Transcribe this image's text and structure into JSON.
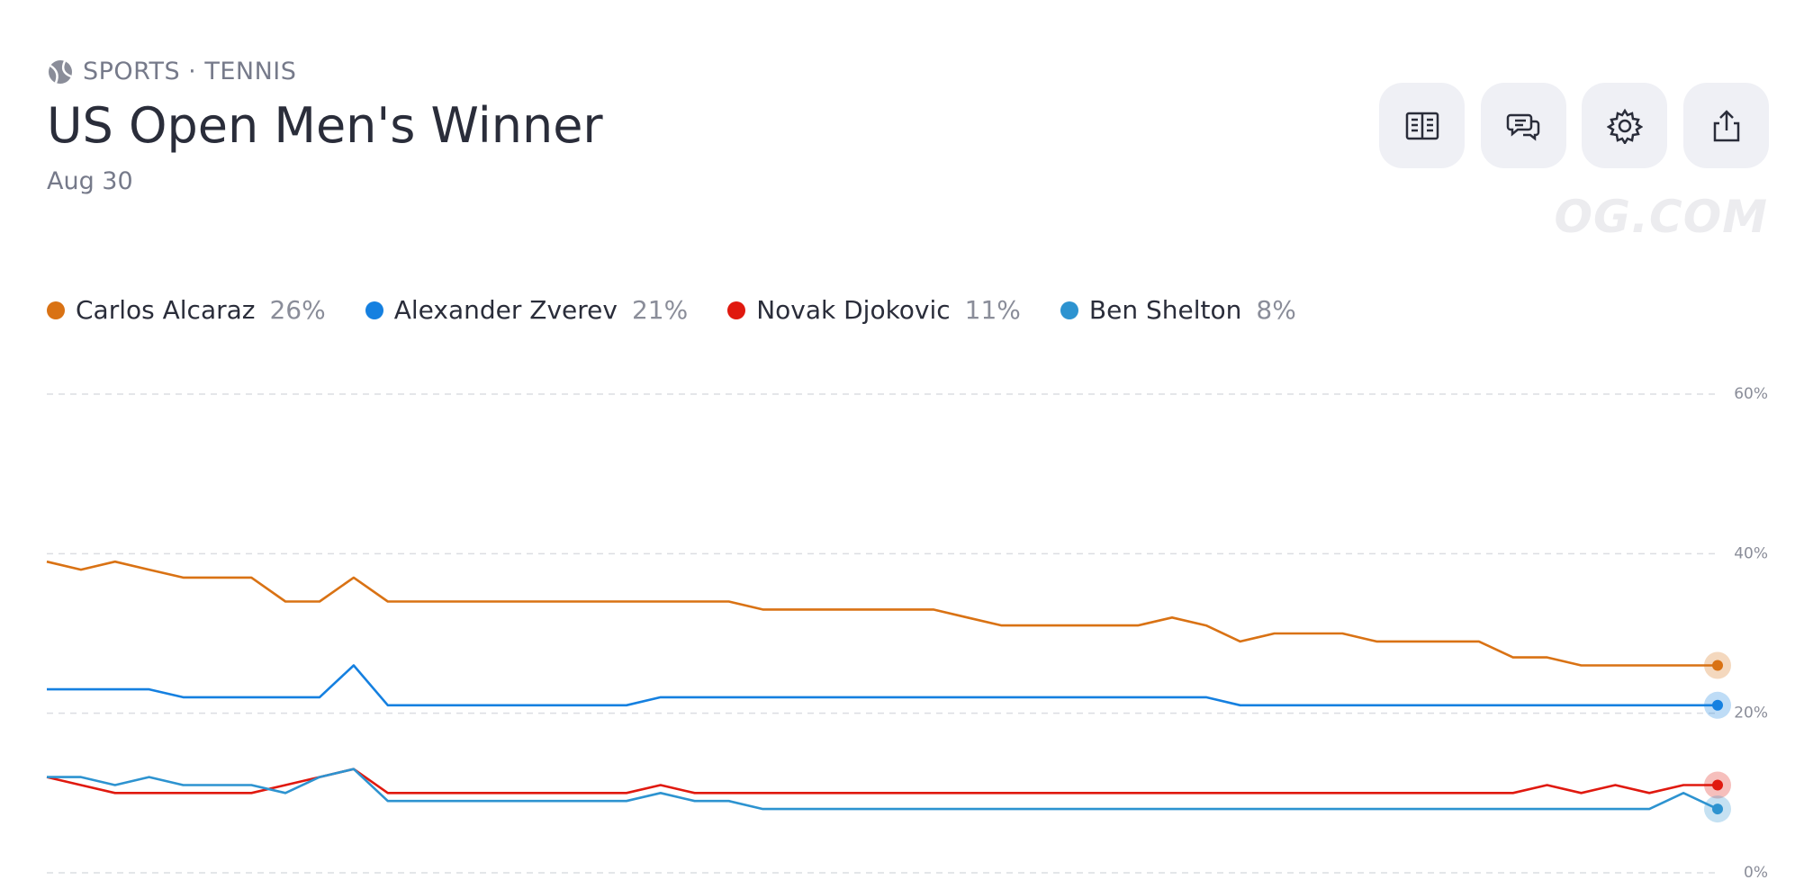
{
  "header": {
    "category": "SPORTS · TENNIS",
    "title": "US Open Men's Winner",
    "date": "Aug 30",
    "watermark": "OG.COM"
  },
  "chart_data": {
    "type": "line",
    "ylim": [
      0,
      60
    ],
    "yticks": [
      {
        "value": 0,
        "label": "0%"
      },
      {
        "value": 20,
        "label": "20%"
      },
      {
        "value": 40,
        "label": "40%"
      },
      {
        "value": 60,
        "label": "60%"
      }
    ],
    "grid": true,
    "series": [
      {
        "name": "Carlos Alcaraz",
        "color": "#d97214",
        "current": {
          "value": 26,
          "label": "26%"
        },
        "values": [
          39,
          38,
          39,
          38,
          37,
          37,
          37,
          34,
          34,
          37,
          34,
          34,
          34,
          34,
          34,
          34,
          34,
          34,
          34,
          34,
          34,
          33,
          33,
          33,
          33,
          33,
          33,
          32,
          31,
          31,
          31,
          31,
          31,
          32,
          31,
          29,
          30,
          30,
          30,
          29,
          29,
          29,
          29,
          27,
          27,
          26,
          26,
          26,
          26,
          26
        ]
      },
      {
        "name": "Alexander Zverev",
        "color": "#1580e0",
        "current": {
          "value": 21,
          "label": "21%"
        },
        "values": [
          23,
          23,
          23,
          23,
          22,
          22,
          22,
          22,
          22,
          26,
          21,
          21,
          21,
          21,
          21,
          21,
          21,
          21,
          22,
          22,
          22,
          22,
          22,
          22,
          22,
          22,
          22,
          22,
          22,
          22,
          22,
          22,
          22,
          22,
          22,
          21,
          21,
          21,
          21,
          21,
          21,
          21,
          21,
          21,
          21,
          21,
          21,
          21,
          21,
          21
        ]
      },
      {
        "name": "Novak Djokovic",
        "color": "#e0190f",
        "current": {
          "value": 11,
          "label": "11%"
        },
        "values": [
          12,
          11,
          10,
          10,
          10,
          10,
          10,
          11,
          12,
          13,
          10,
          10,
          10,
          10,
          10,
          10,
          10,
          10,
          11,
          10,
          10,
          10,
          10,
          10,
          10,
          10,
          10,
          10,
          10,
          10,
          10,
          10,
          10,
          10,
          10,
          10,
          10,
          10,
          10,
          10,
          10,
          10,
          10,
          10,
          11,
          10,
          11,
          10,
          11,
          11
        ]
      },
      {
        "name": "Ben Shelton",
        "color": "#2d93d0",
        "current": {
          "value": 8,
          "label": "8%"
        },
        "values": [
          12,
          12,
          11,
          12,
          11,
          11,
          11,
          10,
          12,
          13,
          9,
          9,
          9,
          9,
          9,
          9,
          9,
          9,
          10,
          9,
          9,
          8,
          8,
          8,
          8,
          8,
          8,
          8,
          8,
          8,
          8,
          8,
          8,
          8,
          8,
          8,
          8,
          8,
          8,
          8,
          8,
          8,
          8,
          8,
          8,
          8,
          8,
          8,
          10,
          8
        ]
      }
    ]
  }
}
